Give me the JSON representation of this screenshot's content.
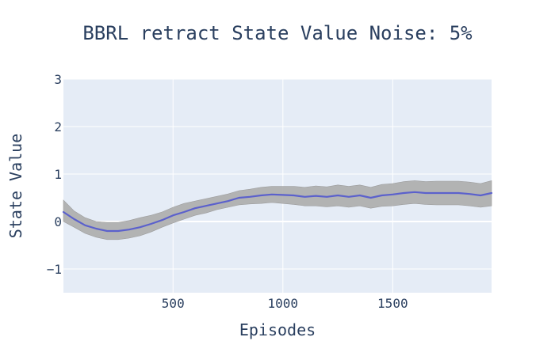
{
  "colors": {
    "plot_background": "#e5ecf6",
    "grid": "#ffffff",
    "mean_line": "#5b61cc",
    "band_fill": "#b0b0b0",
    "band_edge": "#999999",
    "text": "#2a3f5f"
  },
  "chart_data": {
    "type": "line",
    "title": "BBRL retract State Value Noise: 5%",
    "xlabel": "Episodes",
    "ylabel": "State Value",
    "xlim": [
      1,
      1950
    ],
    "ylim": [
      -1.5,
      3
    ],
    "x_ticks": [
      {
        "value": 500,
        "label": "500"
      },
      {
        "value": 1000,
        "label": "1000"
      },
      {
        "value": 1500,
        "label": "1500"
      }
    ],
    "y_ticks": [
      {
        "value": -1,
        "label": "−1"
      },
      {
        "value": 0,
        "label": "0"
      },
      {
        "value": 1,
        "label": "1"
      },
      {
        "value": 2,
        "label": "2"
      },
      {
        "value": 3,
        "label": "3"
      }
    ],
    "grid": true,
    "legend": "none",
    "series": [
      {
        "style": "line",
        "x": [
          1,
          50,
          100,
          150,
          200,
          250,
          300,
          350,
          400,
          450,
          500,
          550,
          600,
          650,
          700,
          750,
          800,
          850,
          900,
          950,
          1000,
          1050,
          1100,
          1150,
          1200,
          1250,
          1300,
          1350,
          1400,
          1450,
          1500,
          1550,
          1600,
          1650,
          1700,
          1750,
          1800,
          1850,
          1900,
          1950
        ],
        "values": [
          0.2,
          0.05,
          -0.08,
          -0.15,
          -0.2,
          -0.2,
          -0.17,
          -0.12,
          -0.05,
          0.03,
          0.13,
          0.2,
          0.28,
          0.33,
          0.38,
          0.43,
          0.5,
          0.52,
          0.55,
          0.57,
          0.56,
          0.55,
          0.52,
          0.54,
          0.52,
          0.55,
          0.52,
          0.55,
          0.5,
          0.55,
          0.57,
          0.6,
          0.62,
          0.6,
          0.6,
          0.6,
          0.6,
          0.58,
          0.55,
          0.6
        ]
      },
      {
        "style": "band",
        "x": [
          1,
          50,
          100,
          150,
          200,
          250,
          300,
          350,
          400,
          450,
          500,
          550,
          600,
          650,
          700,
          750,
          800,
          850,
          900,
          950,
          1000,
          1050,
          1100,
          1150,
          1200,
          1250,
          1300,
          1350,
          1400,
          1450,
          1500,
          1550,
          1600,
          1650,
          1700,
          1750,
          1800,
          1850,
          1900,
          1950
        ],
        "lower": [
          0.0,
          -0.12,
          -0.25,
          -0.33,
          -0.38,
          -0.38,
          -0.35,
          -0.3,
          -0.22,
          -0.12,
          -0.03,
          0.05,
          0.13,
          0.18,
          0.25,
          0.3,
          0.35,
          0.37,
          0.38,
          0.4,
          0.38,
          0.36,
          0.33,
          0.33,
          0.31,
          0.33,
          0.3,
          0.33,
          0.28,
          0.32,
          0.33,
          0.36,
          0.38,
          0.36,
          0.35,
          0.35,
          0.35,
          0.33,
          0.3,
          0.33
        ],
        "upper": [
          0.45,
          0.22,
          0.08,
          0.0,
          -0.02,
          -0.02,
          0.02,
          0.08,
          0.13,
          0.2,
          0.3,
          0.38,
          0.43,
          0.48,
          0.53,
          0.58,
          0.65,
          0.68,
          0.72,
          0.74,
          0.74,
          0.74,
          0.72,
          0.75,
          0.73,
          0.77,
          0.74,
          0.77,
          0.72,
          0.78,
          0.8,
          0.84,
          0.86,
          0.84,
          0.85,
          0.85,
          0.85,
          0.83,
          0.8,
          0.86
        ]
      }
    ]
  }
}
